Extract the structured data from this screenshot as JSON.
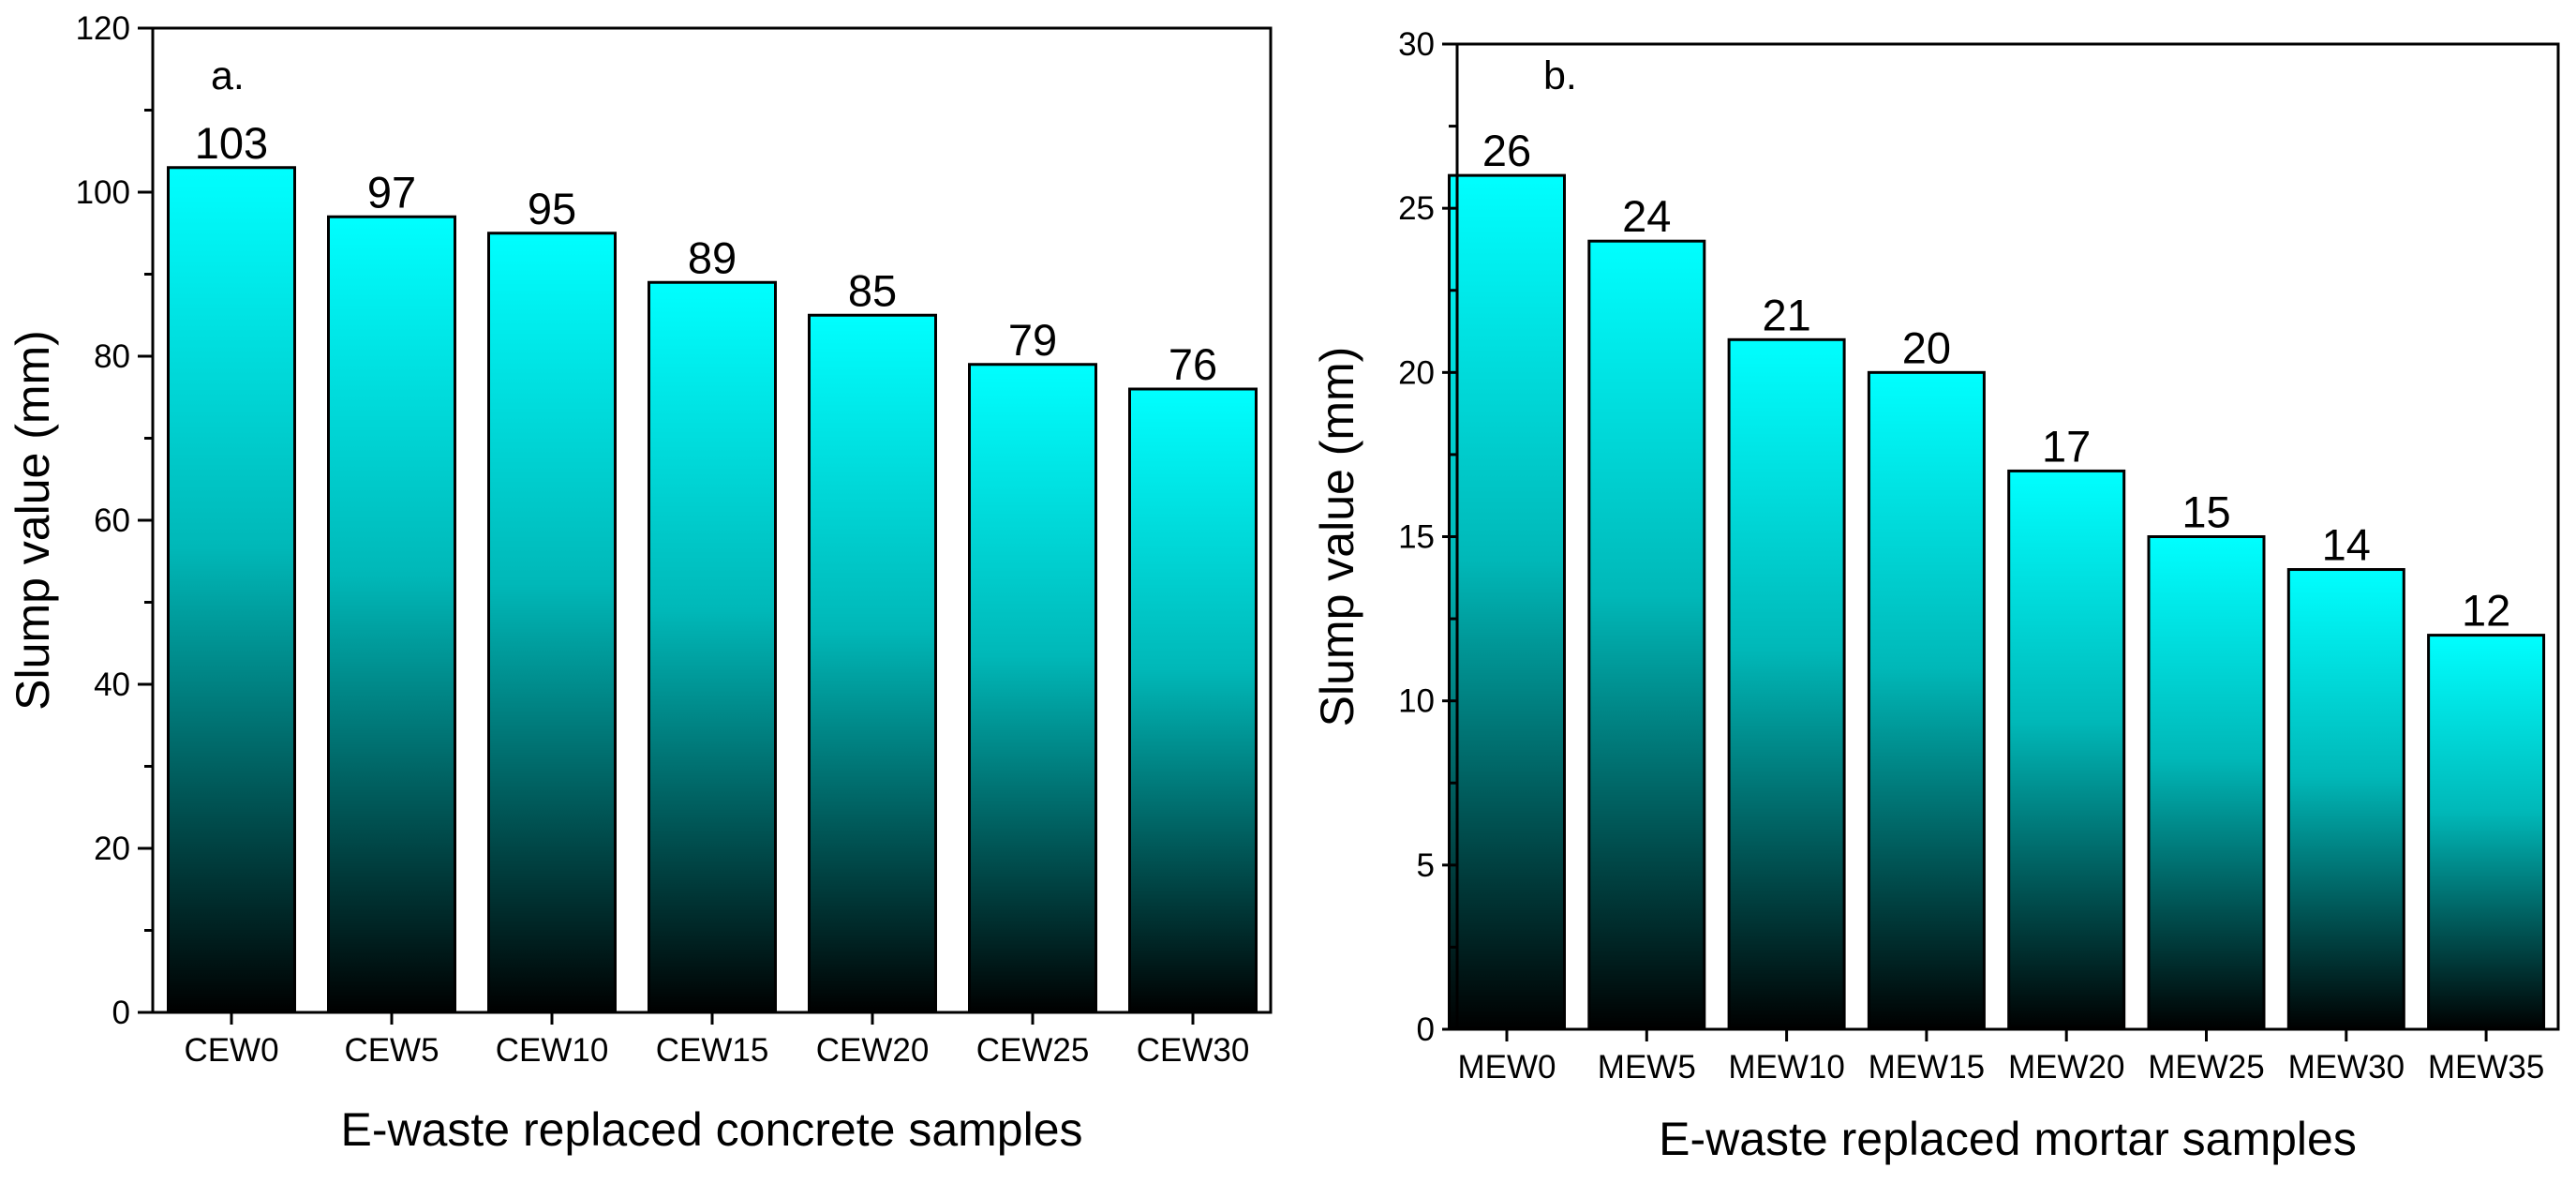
{
  "chart_data": [
    {
      "type": "bar",
      "panel_label": "a.",
      "categories": [
        "CEW0",
        "CEW5",
        "CEW10",
        "CEW15",
        "CEW20",
        "CEW25",
        "CEW30"
      ],
      "values": [
        103,
        97,
        95,
        89,
        85,
        79,
        76
      ],
      "value_labels": [
        "103",
        "97",
        "95",
        "89",
        "85",
        "79",
        "76"
      ],
      "xlabel": "E-waste replaced concrete samples",
      "ylabel": "Slump value (mm)",
      "ylim": [
        0,
        120
      ],
      "yticks": [
        0,
        20,
        40,
        60,
        80,
        100,
        120
      ],
      "grid": false,
      "bar_gradient": [
        "#00FFFF",
        "#000000"
      ]
    },
    {
      "type": "bar",
      "panel_label": "b.",
      "categories": [
        "MEW0",
        "MEW5",
        "MEW10",
        "MEW15",
        "MEW20",
        "MEW25",
        "MEW30",
        "MEW35"
      ],
      "values": [
        26,
        24,
        21,
        20,
        17,
        15,
        14,
        12
      ],
      "value_labels": [
        "26",
        "24",
        "21",
        "20",
        "17",
        "15",
        "14",
        "12"
      ],
      "xlabel": "E-waste replaced mortar samples",
      "ylabel": "Slump value (mm)",
      "ylim": [
        0,
        30
      ],
      "yticks": [
        0,
        5,
        10,
        15,
        20,
        25,
        30
      ],
      "grid": false,
      "bar_gradient": [
        "#00FFFF",
        "#000000"
      ]
    }
  ]
}
